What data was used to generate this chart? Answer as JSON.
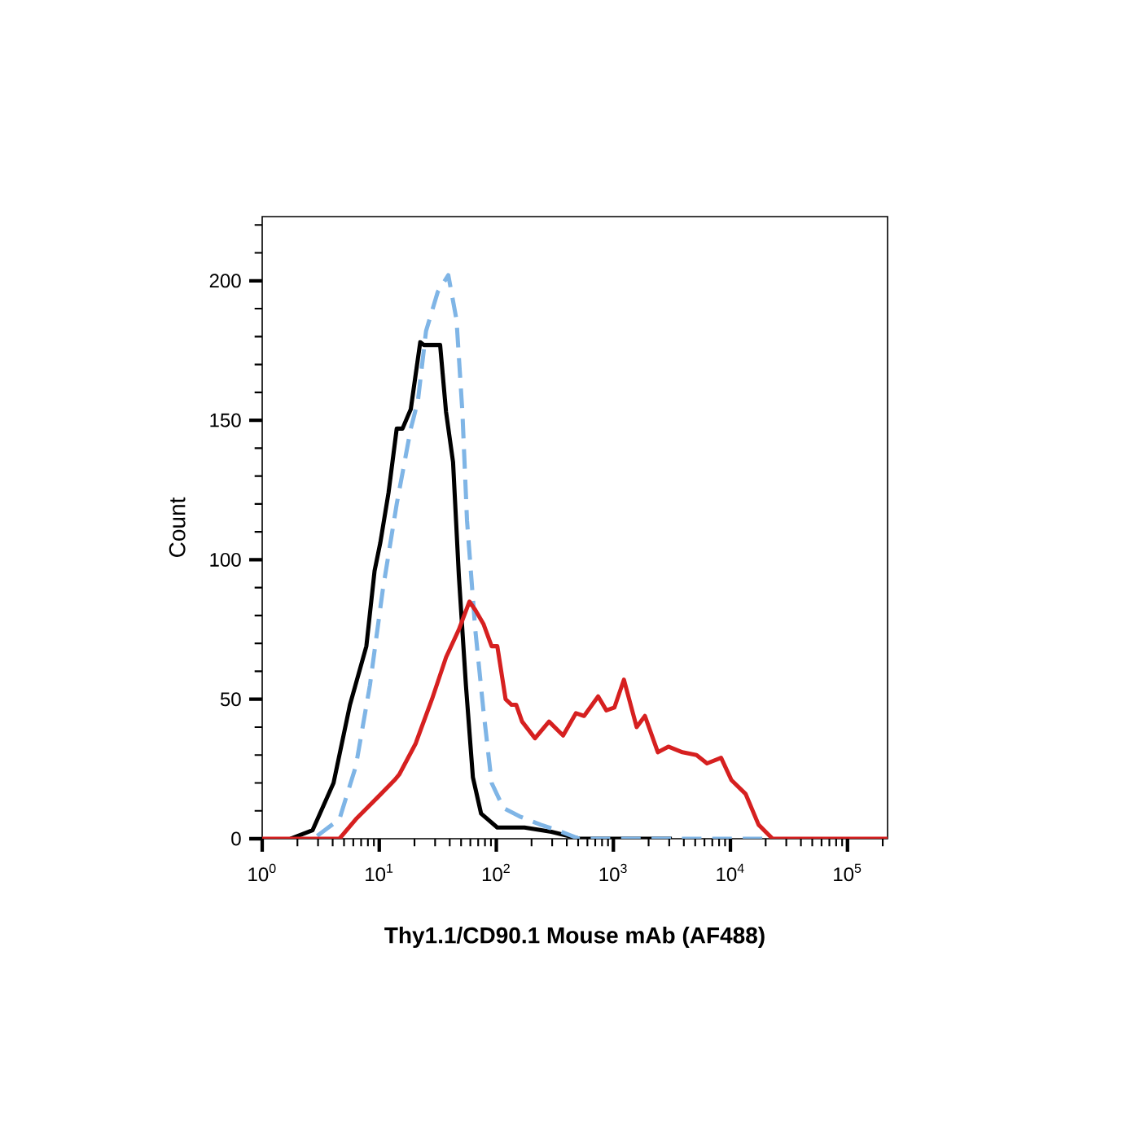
{
  "chart_data": {
    "type": "line",
    "xlabel": "Thy1.1/CD90.1 Mouse mAb (AF488)",
    "ylabel": "Count",
    "log": "x",
    "xlim": [
      1,
      220000
    ],
    "ylim": [
      0,
      223
    ],
    "xticks": [
      {
        "value": 1,
        "label": "10$^{0}$"
      },
      {
        "value": 2,
        "label": null
      },
      {
        "value": 3,
        "label": null
      },
      {
        "value": 4,
        "label": null
      },
      {
        "value": 5,
        "label": null
      },
      {
        "value": 6,
        "label": null
      },
      {
        "value": 7,
        "label": null
      },
      {
        "value": 8,
        "label": null
      },
      {
        "value": 9,
        "label": null
      },
      {
        "value": 10,
        "label": "10$^{1}$"
      },
      {
        "value": 20,
        "label": null
      },
      {
        "value": 30,
        "label": null
      },
      {
        "value": 40,
        "label": null
      },
      {
        "value": 50,
        "label": null
      },
      {
        "value": 60,
        "label": null
      },
      {
        "value": 70,
        "label": null
      },
      {
        "value": 80,
        "label": null
      },
      {
        "value": 90,
        "label": null
      },
      {
        "value": 100,
        "label": "10$^{2}$"
      },
      {
        "value": 200,
        "label": null
      },
      {
        "value": 300,
        "label": null
      },
      {
        "value": 400,
        "label": null
      },
      {
        "value": 500,
        "label": null
      },
      {
        "value": 600,
        "label": null
      },
      {
        "value": 700,
        "label": null
      },
      {
        "value": 800,
        "label": null
      },
      {
        "value": 900,
        "label": null
      },
      {
        "value": 1000,
        "label": "10$^{3}$"
      },
      {
        "value": 2000,
        "label": null
      },
      {
        "value": 3000,
        "label": null
      },
      {
        "value": 4000,
        "label": null
      },
      {
        "value": 5000,
        "label": null
      },
      {
        "value": 6000,
        "label": null
      },
      {
        "value": 7000,
        "label": null
      },
      {
        "value": 8000,
        "label": null
      },
      {
        "value": 9000,
        "label": null
      },
      {
        "value": 10000,
        "label": "10$^{4}$"
      },
      {
        "value": 20000,
        "label": null
      },
      {
        "value": 30000,
        "label": null
      },
      {
        "value": 40000,
        "label": null
      },
      {
        "value": 50000,
        "label": null
      },
      {
        "value": 60000,
        "label": null
      },
      {
        "value": 70000,
        "label": null
      },
      {
        "value": 80000,
        "label": null
      },
      {
        "value": 90000,
        "label": null
      },
      {
        "value": 100000,
        "label": "10$^{5}$"
      },
      {
        "value": 200000,
        "label": null
      }
    ],
    "yticks": [
      0,
      {
        "value": 10,
        "label": null
      },
      {
        "value": 20,
        "label": null
      },
      {
        "value": 30,
        "label": null
      },
      {
        "value": 40,
        "label": null
      },
      50,
      {
        "value": 60,
        "label": null
      },
      {
        "value": 70,
        "label": null
      },
      {
        "value": 80,
        "label": null
      },
      {
        "value": 90,
        "label": null
      },
      100,
      {
        "value": 110,
        "label": null
      },
      {
        "value": 120,
        "label": null
      },
      {
        "value": 130,
        "label": null
      },
      {
        "value": 140,
        "label": null
      },
      150,
      {
        "value": 160,
        "label": null
      },
      {
        "value": 170,
        "label": null
      },
      {
        "value": 180,
        "label": null
      },
      {
        "value": 190,
        "label": null
      },
      200,
      {
        "value": 210,
        "label": null
      },
      {
        "value": 220,
        "label": null
      }
    ],
    "series": [
      {
        "color": "#000000",
        "line_style": "solid",
        "x": [
          1.74,
          2.69,
          4.07,
          5.62,
          7.76,
          9.12,
          10.2,
          12.0,
          14.1,
          15.8,
          18.6,
          20.4,
          22.4,
          24.0,
          33.1,
          37.2,
          42.7,
          47.9,
          55.0,
          63.1,
          74.1,
          102,
          174,
          295,
          513,
          3160
        ],
        "values": [
          0,
          3,
          20,
          48,
          69,
          96,
          106,
          124,
          147,
          147,
          154,
          166,
          178,
          177,
          177,
          153,
          135,
          94,
          55,
          22,
          9,
          4,
          4,
          2.5,
          0,
          0
        ]
      },
      {
        "color": "#7fb5e6",
        "line_style": "dashed",
        "x": [
          2.95,
          4.57,
          6.31,
          8.32,
          10.7,
          14.1,
          18.6,
          21.4,
          25.1,
          31.6,
          38.9,
          45.7,
          51.3,
          56.2,
          66.1,
          77.6,
          91.2,
          115,
          158,
          240,
          331,
          513,
          21400
        ],
        "values": [
          1,
          7,
          26,
          55,
          89,
          120,
          147,
          157,
          182,
          196,
          202,
          186,
          153,
          114,
          75,
          46,
          20,
          11,
          8,
          5,
          3,
          0,
          0
        ]
      },
      {
        "color": "#d62020",
        "line_style": "solid",
        "x": [
          1,
          4.57,
          6.31,
          9.77,
          13.5,
          14.8,
          20.4,
          28.2,
          37.2,
          47.9,
          58.9,
          66.1,
          77.6,
          91.2,
          102,
          120,
          135,
          148,
          166,
          214,
          282,
          372,
          479,
          562,
          741,
          871,
          1020,
          1230,
          1580,
          1860,
          2400,
          2950,
          3890,
          5130,
          6310,
          8320,
          10200,
          13500,
          17400,
          22900,
          220000
        ],
        "values": [
          0,
          0,
          7,
          15,
          21,
          23,
          34,
          50,
          65,
          75,
          85,
          82,
          77,
          69,
          69,
          50,
          48,
          48,
          42,
          36,
          42,
          37,
          45,
          44,
          51,
          46,
          47,
          57,
          40,
          44,
          31,
          33,
          31,
          30,
          27,
          29,
          21,
          16,
          5,
          0,
          0
        ]
      }
    ]
  }
}
